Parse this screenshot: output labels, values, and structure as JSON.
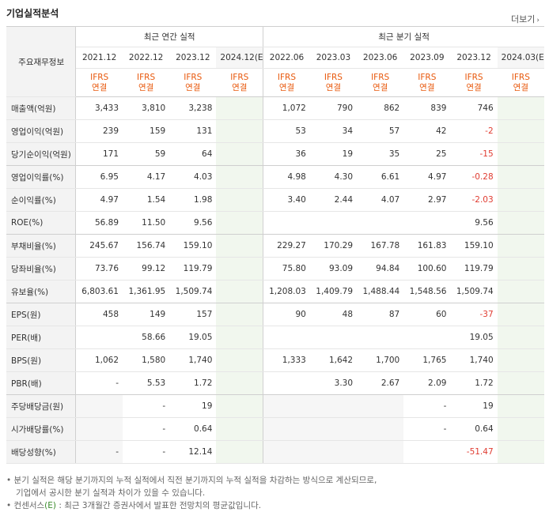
{
  "title": "기업실적분석",
  "more_label": "더보기",
  "header": {
    "metric_label": "주요재무정보",
    "annual_label": "최근 연간 실적",
    "quarter_label": "최근 분기 실적",
    "periods": [
      "2021.12",
      "2022.12",
      "2023.12",
      "2024.12(E)",
      "2022.06",
      "2023.03",
      "2023.06",
      "2023.09",
      "2023.12",
      "2024.03(E)"
    ],
    "ifrs_line1": "IFRS",
    "ifrs_line2": "연결"
  },
  "rows": [
    {
      "label": "매출액(억원)",
      "values": [
        "3,433",
        "3,810",
        "3,238",
        "",
        "1,072",
        "790",
        "862",
        "839",
        "746",
        ""
      ]
    },
    {
      "label": "영업이익(억원)",
      "values": [
        "239",
        "159",
        "131",
        "",
        "53",
        "34",
        "57",
        "42",
        "-2",
        ""
      ]
    },
    {
      "label": "당기순이익(억원)",
      "values": [
        "171",
        "59",
        "64",
        "",
        "36",
        "19",
        "35",
        "25",
        "-15",
        ""
      ]
    },
    {
      "label": "영업이익률(%)",
      "values": [
        "6.95",
        "4.17",
        "4.03",
        "",
        "4.98",
        "4.30",
        "6.61",
        "4.97",
        "-0.28",
        ""
      ]
    },
    {
      "label": "순이익률(%)",
      "values": [
        "4.97",
        "1.54",
        "1.98",
        "",
        "3.40",
        "2.44",
        "4.07",
        "2.97",
        "-2.03",
        ""
      ]
    },
    {
      "label": "ROE(%)",
      "values": [
        "56.89",
        "11.50",
        "9.56",
        "",
        "",
        "",
        "",
        "",
        "9.56",
        ""
      ]
    },
    {
      "label": "부채비율(%)",
      "values": [
        "245.67",
        "156.74",
        "159.10",
        "",
        "229.27",
        "170.29",
        "167.78",
        "161.83",
        "159.10",
        ""
      ]
    },
    {
      "label": "당좌비율(%)",
      "values": [
        "73.76",
        "99.12",
        "119.79",
        "",
        "75.80",
        "93.09",
        "94.84",
        "100.60",
        "119.79",
        ""
      ]
    },
    {
      "label": "유보율(%)",
      "values": [
        "6,803.61",
        "1,361.95",
        "1,509.74",
        "",
        "1,208.03",
        "1,409.79",
        "1,488.44",
        "1,548.56",
        "1,509.74",
        ""
      ]
    },
    {
      "label": "EPS(원)",
      "values": [
        "458",
        "149",
        "157",
        "",
        "90",
        "48",
        "87",
        "60",
        "-37",
        ""
      ]
    },
    {
      "label": "PER(배)",
      "values": [
        "",
        "58.66",
        "19.05",
        "",
        "",
        "",
        "",
        "",
        "19.05",
        ""
      ]
    },
    {
      "label": "BPS(원)",
      "values": [
        "1,062",
        "1,580",
        "1,740",
        "",
        "1,333",
        "1,642",
        "1,700",
        "1,765",
        "1,740",
        ""
      ]
    },
    {
      "label": "PBR(배)",
      "values": [
        "-",
        "5.53",
        "1.72",
        "",
        "",
        "3.30",
        "2.67",
        "2.09",
        "1.72",
        ""
      ]
    },
    {
      "label": "주당배당금(원)",
      "values": [
        "",
        "-",
        "19",
        "",
        "",
        "",
        "",
        "-",
        "19",
        ""
      ]
    },
    {
      "label": "시가배당률(%)",
      "values": [
        "",
        "-",
        "0.64",
        "",
        "",
        "",
        "",
        "-",
        "0.64",
        ""
      ]
    },
    {
      "label": "배당성향(%)",
      "values": [
        "-",
        "-",
        "12.14",
        "",
        "",
        "",
        "",
        "",
        "-51.47",
        ""
      ]
    }
  ],
  "notes": {
    "line1": "분기 실적은 해당 분기까지의 누적 실적에서 직전 분기까지의 누적 실적을 차감하는 방식으로 계산되므로,",
    "line2": "기업에서 공시한 분기 실적과 차이가 있을 수 있습니다.",
    "line3a": "컨센서스",
    "line3e": "(E)",
    "line3b": ": 최근 3개월간 증권사에서 발표한 전망치의 평균값입니다."
  },
  "colors": {
    "ifrs": "#e8580c",
    "negative": "#e03c31",
    "estimate_bg": "#f1f7ee"
  }
}
